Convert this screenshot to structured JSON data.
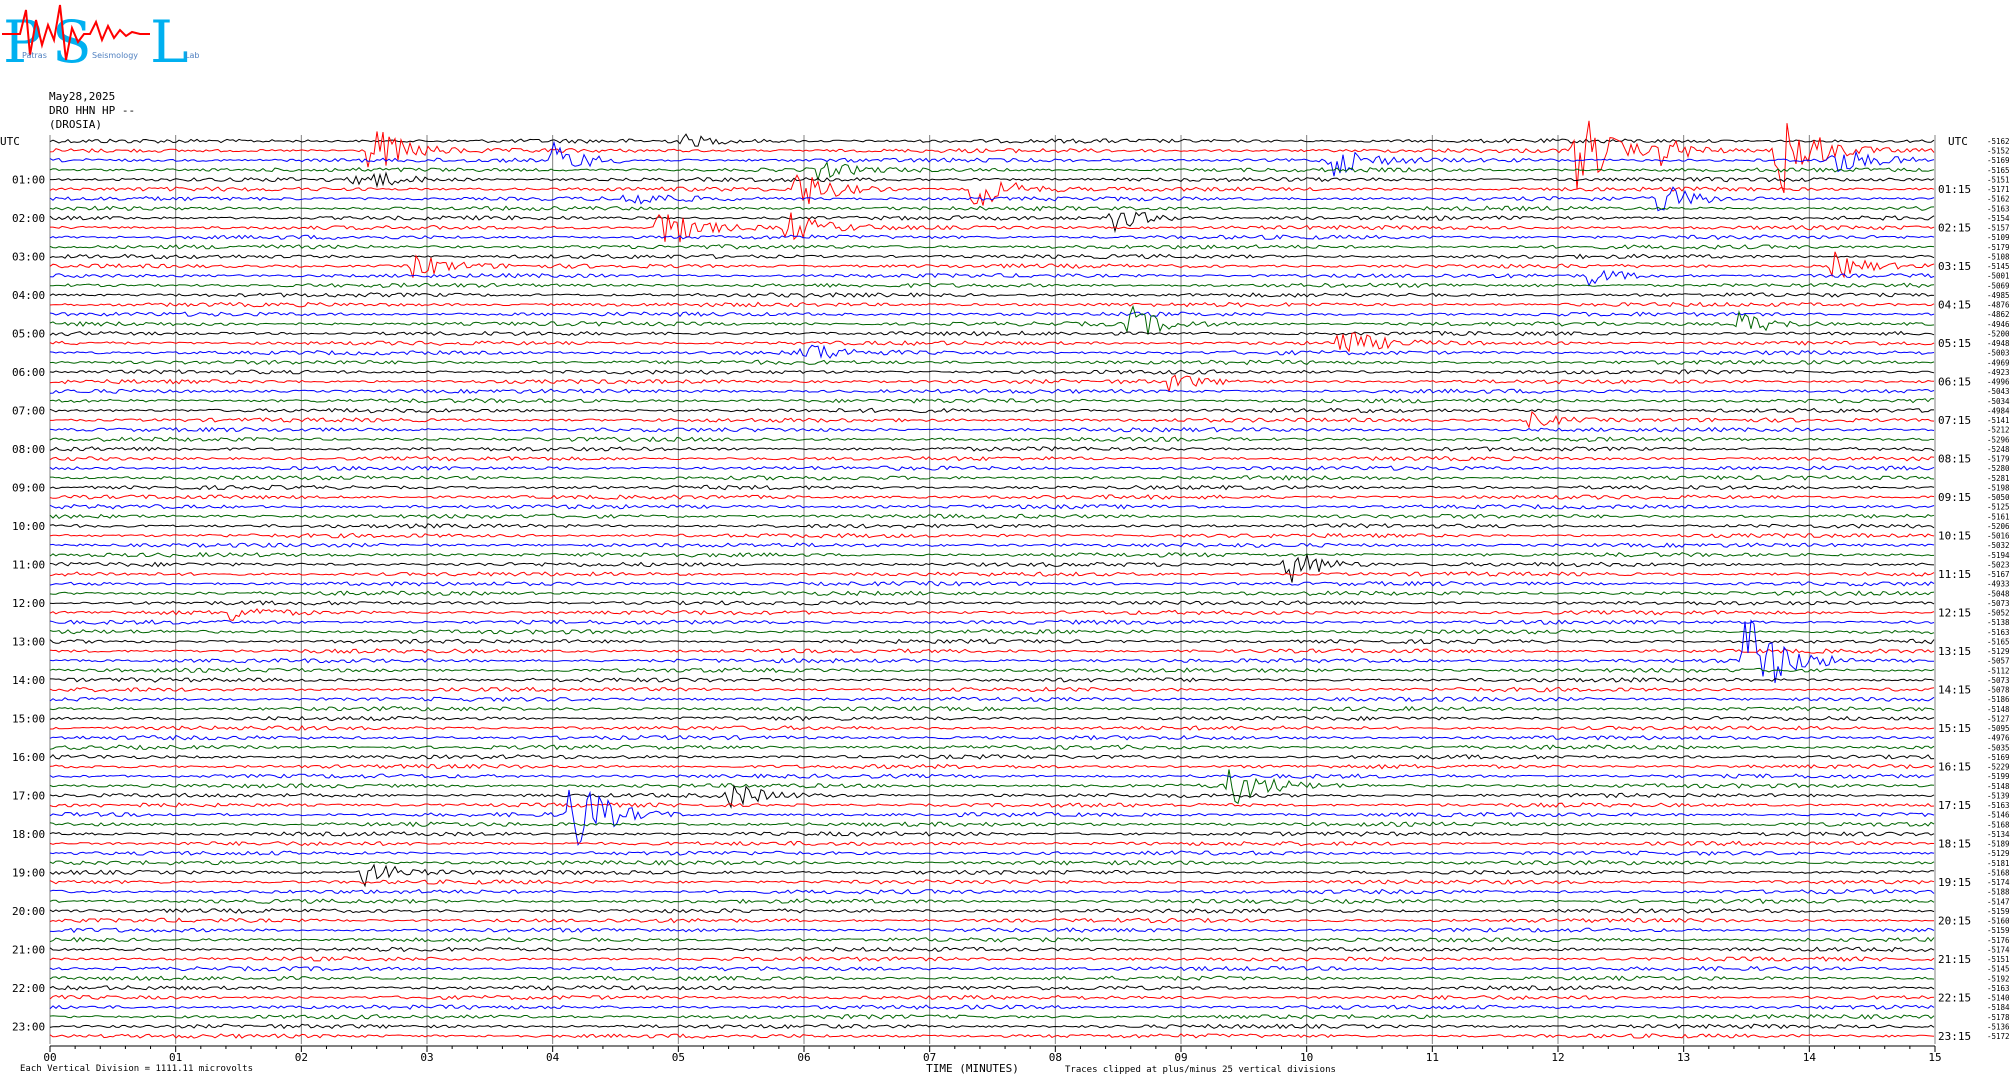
{
  "logo": {
    "letters": [
      "P",
      "S",
      "L"
    ],
    "small_text": [
      "Patras",
      "Seismology",
      "Lab"
    ]
  },
  "header": {
    "date": "May28,2025",
    "station": "DRO HHN HP --",
    "site": "(DROSIA)"
  },
  "chart_data": {
    "type": "line",
    "subtype": "helicorder",
    "left_axis_label": "UTC",
    "right_axis_label": "UTC",
    "left_hour_labels": [
      "01:00",
      "02:00",
      "03:00",
      "04:00",
      "05:00",
      "06:00",
      "07:00",
      "08:00",
      "09:00",
      "10:00",
      "11:00",
      "12:00",
      "13:00",
      "14:00",
      "15:00",
      "16:00",
      "17:00",
      "18:00",
      "19:00",
      "20:00",
      "21:00",
      "22:00",
      "23:00"
    ],
    "right_hour_labels": [
      "01:15",
      "02:15",
      "03:15",
      "04:15",
      "05:15",
      "06:15",
      "07:15",
      "08:15",
      "09:15",
      "10:15",
      "11:15",
      "12:15",
      "13:15",
      "14:15",
      "15:15",
      "16:15",
      "17:15",
      "18:15",
      "19:15",
      "20:15",
      "21:15",
      "22:15",
      "23:15"
    ],
    "x_ticks": [
      "00",
      "01",
      "02",
      "03",
      "04",
      "05",
      "06",
      "07",
      "08",
      "09",
      "10",
      "11",
      "12",
      "13",
      "14",
      "15"
    ],
    "xlabel": "TIME (MINUTES)",
    "xlim": [
      0,
      15
    ],
    "trace_minutes": 15,
    "traces_per_hour": 4,
    "trace_colors": [
      "#000000",
      "#ff0000",
      "#0000ff",
      "#006400"
    ],
    "trace_offsets": [
      "-5162",
      "-5152",
      "-5169",
      "-5165",
      "-5151",
      "-5171",
      "-5162",
      "-5163",
      "-5154",
      "-5157",
      "-5109",
      "-5179",
      "-5108",
      "-5145",
      "-5001",
      "-5069",
      "-4985",
      "-4876",
      "-4862",
      "-4946",
      "-5200",
      "-4948",
      "-5003",
      "-4969",
      "-4923",
      "-4996",
      "-5043",
      "-5034",
      "-4984",
      "-5141",
      "-5212",
      "-5296",
      "-5248",
      "-5179",
      "-5280",
      "-5281",
      "-5198",
      "-5050",
      "-5125",
      "-5161",
      "-5206",
      "-5016",
      "-5032",
      "-5194",
      "-5023",
      "-5167",
      "-4933",
      "-5048",
      "-5073",
      "-5052",
      "-5138",
      "-5163",
      "-5165",
      "-5129",
      "-5057",
      "-5112",
      "-5073",
      "-5078",
      "-5186",
      "-5148",
      "-5127",
      "-5095",
      "-4976",
      "-5035",
      "-5169",
      "-5229",
      "-5199",
      "-5148",
      "-5139",
      "-5163",
      "-5146",
      "-5168",
      "-5134",
      "-5189",
      "-5129",
      "-5181",
      "-5168",
      "-5174",
      "-5188",
      "-5147",
      "-5159",
      "-5160",
      "-5159",
      "-5176",
      "-5174",
      "-5151",
      "-5145",
      "-5192",
      "-5163",
      "-5140",
      "-5184",
      "-5178",
      "-5136",
      "-5172"
    ],
    "events": [
      {
        "trace": 0,
        "minute": 5.05,
        "amplitude": 0.5
      },
      {
        "trace": 1,
        "minute": 12.15,
        "amplitude": 4
      },
      {
        "trace": 1,
        "minute": 12.8,
        "amplitude": 1.5
      },
      {
        "trace": 1,
        "minute": 13.75,
        "amplitude": 5
      },
      {
        "trace": 1,
        "minute": 2.55,
        "amplitude": 2.5
      },
      {
        "trace": 2,
        "minute": 4.0,
        "amplitude": 1.5
      },
      {
        "trace": 2,
        "minute": 10.2,
        "amplitude": 1.5
      },
      {
        "trace": 2,
        "minute": 14.2,
        "amplitude": 1.2
      },
      {
        "trace": 3,
        "minute": 6.1,
        "amplitude": 0.8
      },
      {
        "trace": 4,
        "minute": 2.45,
        "amplitude": 1.2
      },
      {
        "trace": 5,
        "minute": 5.95,
        "amplitude": 2
      },
      {
        "trace": 5,
        "minute": 7.35,
        "amplitude": 2
      },
      {
        "trace": 6,
        "minute": 4.6,
        "amplitude": 0.8
      },
      {
        "trace": 6,
        "minute": 12.8,
        "amplitude": 1.5
      },
      {
        "trace": 8,
        "minute": 8.45,
        "amplitude": 1.2
      },
      {
        "trace": 9,
        "minute": 4.85,
        "amplitude": 2.5
      },
      {
        "trace": 9,
        "minute": 5.85,
        "amplitude": 1.5
      },
      {
        "trace": 13,
        "minute": 2.9,
        "amplitude": 1.2
      },
      {
        "trace": 13,
        "minute": 14.2,
        "amplitude": 1.2
      },
      {
        "trace": 14,
        "minute": 12.25,
        "amplitude": 0.8
      },
      {
        "trace": 19,
        "minute": 8.6,
        "amplitude": 1.5
      },
      {
        "trace": 19,
        "minute": 13.45,
        "amplitude": 1.2
      },
      {
        "trace": 21,
        "minute": 10.25,
        "amplitude": 1.5
      },
      {
        "trace": 22,
        "minute": 6.0,
        "amplitude": 1.0
      },
      {
        "trace": 25,
        "minute": 8.9,
        "amplitude": 0.8
      },
      {
        "trace": 29,
        "minute": 11.75,
        "amplitude": 0.8
      },
      {
        "trace": 44,
        "minute": 9.85,
        "amplitude": 1.8
      },
      {
        "trace": 49,
        "minute": 1.4,
        "amplitude": 0.8
      },
      {
        "trace": 54,
        "minute": 13.5,
        "amplitude": 5
      },
      {
        "trace": 67,
        "minute": 9.4,
        "amplitude": 2
      },
      {
        "trace": 68,
        "minute": 5.4,
        "amplitude": 1.2
      },
      {
        "trace": 70,
        "minute": 4.15,
        "amplitude": 4
      },
      {
        "trace": 76,
        "minute": 2.5,
        "amplitude": 1.2
      }
    ]
  },
  "footer": {
    "division_note": "Each Vertical Division = 1111.11 microvolts",
    "clip_note": "Traces clipped at plus/minus 25 vertical divisions"
  }
}
